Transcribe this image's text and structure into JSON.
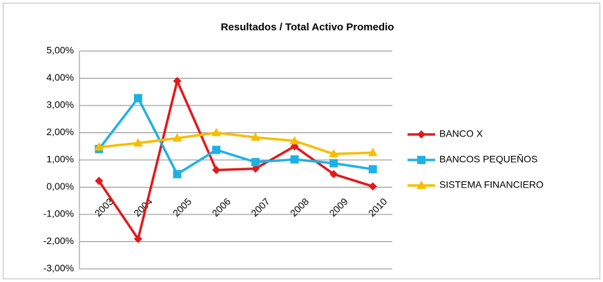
{
  "chart_data": {
    "type": "line",
    "title": "Resultados / Total Activo Promedio",
    "categories": [
      "2003",
      "2004",
      "2005",
      "2006",
      "2007",
      "2008",
      "2009",
      "2010"
    ],
    "series": [
      {
        "name": "BANCO X",
        "color": "#e3191b",
        "marker": "diamond",
        "values": [
          0.23,
          -1.9,
          3.9,
          0.63,
          0.68,
          1.5,
          0.48,
          0.03
        ]
      },
      {
        "name": "BANCOS PEQUEÑOS",
        "color": "#1fb1e6",
        "marker": "square",
        "values": [
          1.4,
          3.27,
          0.48,
          1.37,
          0.92,
          1.02,
          0.88,
          0.66
        ]
      },
      {
        "name": "SISTEMA FINANCIERO",
        "color": "#f7bd00",
        "marker": "triangle",
        "values": [
          1.47,
          1.62,
          1.8,
          2.0,
          1.83,
          1.7,
          1.22,
          1.27
        ]
      }
    ],
    "ylim": [
      -3,
      5
    ],
    "yticks": [
      {
        "value": -3,
        "label": "-3,00%"
      },
      {
        "value": -2,
        "label": "-2,00%"
      },
      {
        "value": -1,
        "label": "-1,00%"
      },
      {
        "value": 0,
        "label": "0,00%"
      },
      {
        "value": 1,
        "label": "1,00%"
      },
      {
        "value": 2,
        "label": "2,00%"
      },
      {
        "value": 3,
        "label": "3,00%"
      },
      {
        "value": 4,
        "label": "4,00%"
      },
      {
        "value": 5,
        "label": "5,00%"
      }
    ],
    "grid": true,
    "legend": "right"
  }
}
